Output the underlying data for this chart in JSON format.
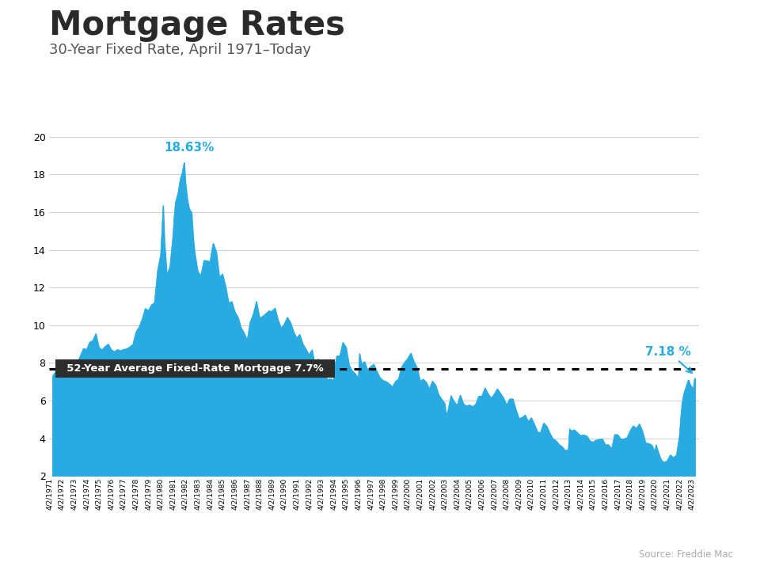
{
  "title": "Mortgage Rates",
  "subtitle": "30-Year Fixed Rate, April 1971–Today",
  "source": "Source: Freddie Mac",
  "header_color": "#29abe2",
  "fill_color": "#29abe2",
  "line_color": "#29abe2",
  "avg_line_y": 7.7,
  "avg_label": "52-Year Average Fixed-Rate Mortgage 7.7%",
  "avg_label_bg": "#2d2d2d",
  "avg_label_fg": "#ffffff",
  "peak_label": "18.63%",
  "peak_color": "#29abe2",
  "current_label": "7.18 %",
  "current_color": "#29abe2",
  "ylim": [
    2,
    20
  ],
  "yticks": [
    2,
    4,
    6,
    8,
    10,
    12,
    14,
    16,
    18,
    20
  ],
  "title_fontsize": 30,
  "subtitle_fontsize": 13,
  "axis_fontsize": 9,
  "background_color": "#ffffff",
  "plot_bg_color": "#ffffff"
}
